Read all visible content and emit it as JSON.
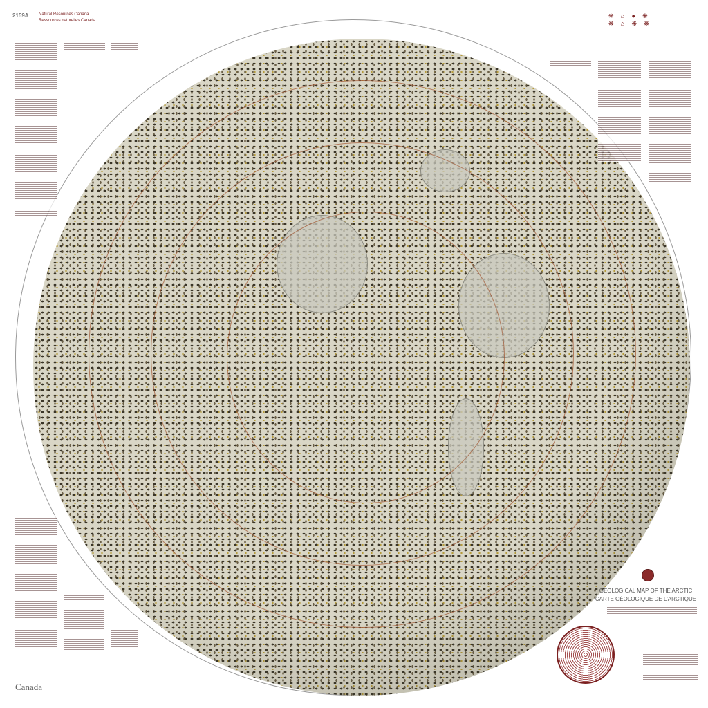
{
  "header": {
    "map_number": "2159A",
    "department_en": "Natural Resources Canada",
    "department_fr": "Ressources naturelles Canada"
  },
  "title": {
    "en": "GEOLOGICAL MAP OF THE ARCTIC",
    "fr": "CARTE GÉOLOGIQUE DE L'ARCTIQUE"
  },
  "footer": {
    "wordmark": "Canada"
  },
  "icons": [
    "seal-icon",
    "legend-polar-diagram-icon",
    "agency-logos-icon"
  ],
  "colors": {
    "accent": "#7a2020",
    "map_base": "#d9d6c6",
    "contour": "#a0522d"
  }
}
